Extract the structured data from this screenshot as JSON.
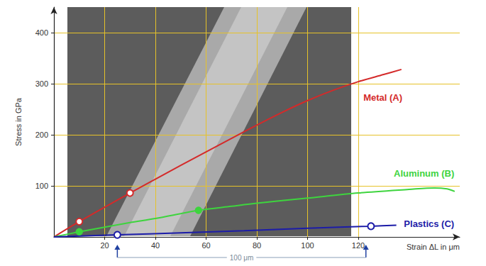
{
  "chart_data": {
    "type": "line",
    "x_label": "Strain ΔL in μm",
    "y_label": "Stress in GPa",
    "xlim": [
      0,
      160
    ],
    "xticks": [
      20,
      40,
      60,
      80,
      100,
      120
    ],
    "ylim": [
      0,
      450
    ],
    "yticks": [
      100,
      200,
      300,
      400
    ],
    "grid": true,
    "series": [
      {
        "name": "Metal (A)",
        "color": "#d42a2a",
        "marker": "emptyCircle",
        "marked_x": [
          10,
          30
        ],
        "label_at": [
          122,
          273
        ],
        "x": [
          0,
          10,
          30,
          50,
          70,
          80,
          90,
          100,
          110,
          120,
          130,
          137
        ],
        "values": [
          0,
          30,
          86,
          140,
          193,
          219,
          244,
          267,
          287,
          304,
          318,
          328
        ]
      },
      {
        "name": "Aluminum (B)",
        "color": "#3ed43e",
        "marker": "circle",
        "marked_x": [
          10,
          57
        ],
        "label_at": [
          134,
          124
        ],
        "x": [
          0,
          10,
          20,
          30,
          40,
          57,
          70,
          80,
          100,
          120,
          140,
          150,
          155,
          158
        ],
        "values": [
          0,
          10,
          19,
          28,
          36,
          52,
          60,
          66,
          76,
          86,
          93,
          96,
          94,
          89
        ]
      },
      {
        "name": "Plastics (C)",
        "color": "#1c1ca8",
        "marker": "emptyCircle",
        "marked_x": [
          25,
          125
        ],
        "label_at": [
          138,
          26
        ],
        "x": [
          0,
          25,
          50,
          75,
          100,
          125,
          135
        ],
        "values": [
          0,
          4,
          8,
          12,
          17,
          21,
          23
        ]
      }
    ],
    "annotations": [
      {
        "text": "100 μm",
        "range": [
          25,
          123
        ]
      }
    ]
  }
}
